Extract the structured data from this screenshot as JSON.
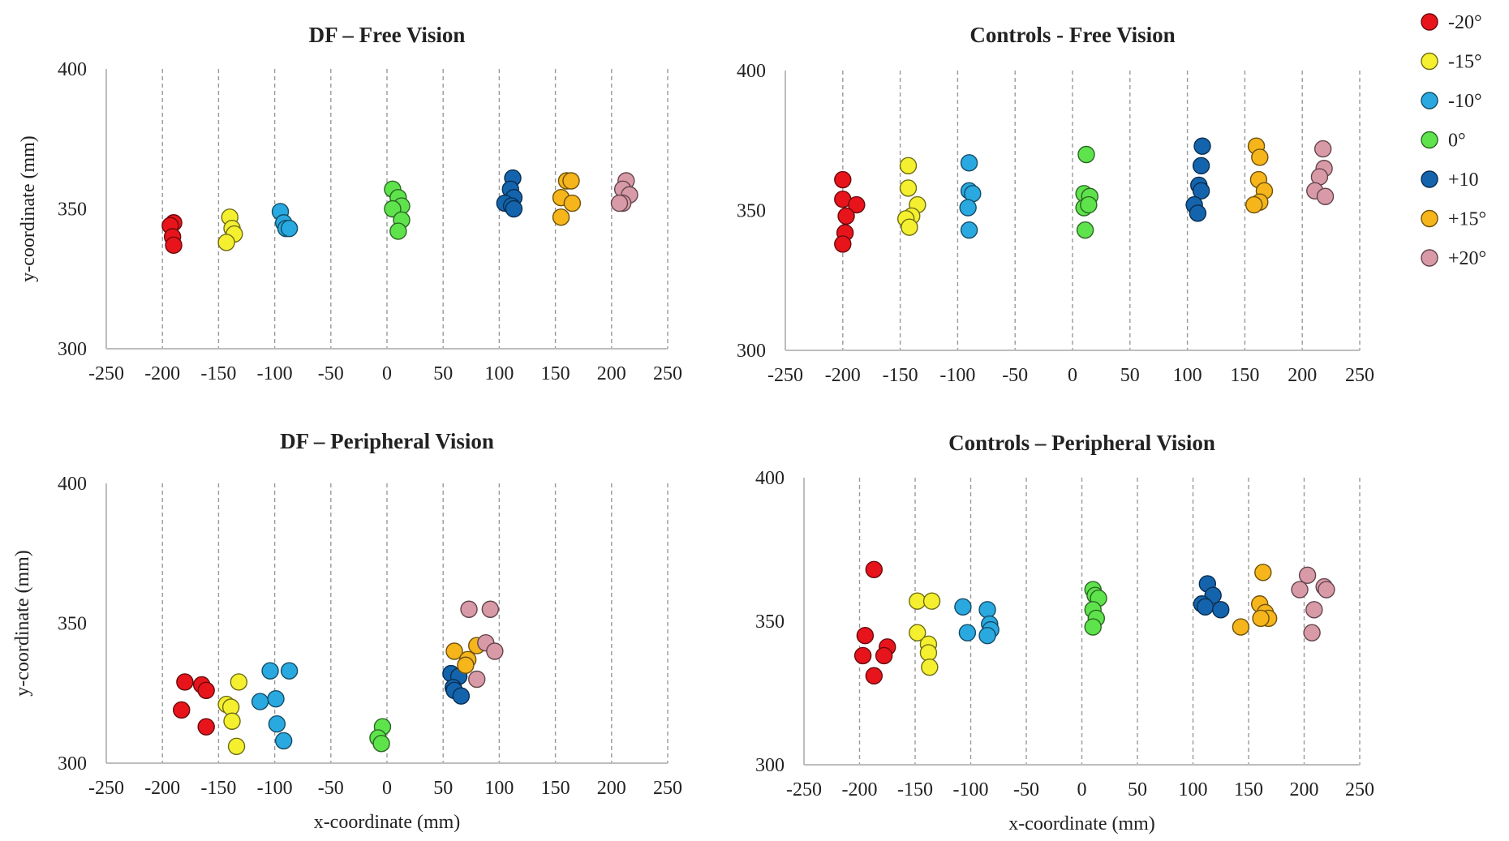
{
  "chart_data": [
    {
      "type": "scatter",
      "title": "DF – Free Vision",
      "xlabel": "",
      "ylabel": "y-coordinate  (mm)",
      "xlim": [
        -250,
        250
      ],
      "ylim": [
        300,
        400
      ],
      "xticks": [
        "-250",
        "-200",
        "-150",
        "-100",
        "-50",
        "0",
        "50",
        "100",
        "150",
        "200",
        "250"
      ],
      "yticks": [
        "300",
        "350",
        "400"
      ],
      "grid": "vertical dashed",
      "series": [
        {
          "name": "-20°",
          "points": [
            [
              -190,
              345
            ],
            [
              -193,
              344
            ],
            [
              -191,
              340
            ],
            [
              -190,
              337
            ]
          ]
        },
        {
          "name": "-15°",
          "points": [
            [
              -140,
              347
            ],
            [
              -138,
              343
            ],
            [
              -136,
              341
            ],
            [
              -143,
              338
            ]
          ]
        },
        {
          "name": "-10°",
          "points": [
            [
              -95,
              349
            ],
            [
              -92,
              345
            ],
            [
              -90,
              343
            ],
            [
              -87,
              343
            ]
          ]
        },
        {
          "name": "0°",
          "points": [
            [
              5,
              357
            ],
            [
              10,
              354
            ],
            [
              13,
              351
            ],
            [
              5,
              350
            ],
            [
              13,
              346
            ],
            [
              10,
              342
            ]
          ]
        },
        {
          "name": "+10",
          "points": [
            [
              112,
              361
            ],
            [
              110,
              357
            ],
            [
              113,
              354
            ],
            [
              105,
              352
            ],
            [
              111,
              351
            ],
            [
              113,
              350
            ]
          ]
        },
        {
          "name": "+15°",
          "points": [
            [
              160,
              360
            ],
            [
              164,
              360
            ],
            [
              155,
              354
            ],
            [
              165,
              352
            ],
            [
              155,
              347
            ]
          ]
        },
        {
          "name": "+20°",
          "points": [
            [
              213,
              360
            ],
            [
              210,
              357
            ],
            [
              216,
              355
            ],
            [
              210,
              352
            ],
            [
              207,
              352
            ]
          ]
        }
      ]
    },
    {
      "type": "scatter",
      "title": "Controls  - Free Vision",
      "xlabel": "",
      "ylabel": "",
      "xlim": [
        -250,
        250
      ],
      "ylim": [
        300,
        400
      ],
      "xticks": [
        "-250",
        "-200",
        "-150",
        "-100",
        "-50",
        "0",
        "50",
        "100",
        "150",
        "200",
        "250"
      ],
      "yticks": [
        "300",
        "350",
        "400"
      ],
      "grid": "vertical dashed",
      "series": [
        {
          "name": "-20°",
          "points": [
            [
              -200,
              361
            ],
            [
              -200,
              354
            ],
            [
              -188,
              352
            ],
            [
              -197,
              348
            ],
            [
              -198,
              342
            ],
            [
              -200,
              338
            ]
          ]
        },
        {
          "name": "-15°",
          "points": [
            [
              -143,
              366
            ],
            [
              -143,
              358
            ],
            [
              -135,
              352
            ],
            [
              -140,
              348
            ],
            [
              -145,
              347
            ],
            [
              -142,
              344
            ]
          ]
        },
        {
          "name": "-10°",
          "points": [
            [
              -90,
              367
            ],
            [
              -90,
              357
            ],
            [
              -87,
              356
            ],
            [
              -91,
              351
            ],
            [
              -90,
              343
            ]
          ]
        },
        {
          "name": "0°",
          "points": [
            [
              12,
              370
            ],
            [
              10,
              356
            ],
            [
              15,
              355
            ],
            [
              10,
              351
            ],
            [
              14,
              352
            ],
            [
              11,
              343
            ]
          ]
        },
        {
          "name": "+10",
          "points": [
            [
              113,
              373
            ],
            [
              112,
              366
            ],
            [
              110,
              359
            ],
            [
              112,
              357
            ],
            [
              106,
              352
            ],
            [
              109,
              349
            ]
          ]
        },
        {
          "name": "+15°",
          "points": [
            [
              160,
              373
            ],
            [
              163,
              369
            ],
            [
              162,
              361
            ],
            [
              167,
              357
            ],
            [
              163,
              353
            ],
            [
              158,
              352
            ]
          ]
        },
        {
          "name": "+20°",
          "points": [
            [
              218,
              372
            ],
            [
              219,
              365
            ],
            [
              215,
              362
            ],
            [
              211,
              357
            ],
            [
              220,
              355
            ]
          ]
        }
      ]
    },
    {
      "type": "scatter",
      "title": "DF – Peripheral  Vision",
      "xlabel": "x-coordinate  (mm)",
      "ylabel": "y-coordinate  (mm)",
      "xlim": [
        -250,
        250
      ],
      "ylim": [
        300,
        400
      ],
      "xticks": [
        "-250",
        "-200",
        "-150",
        "-100",
        "-50",
        "0",
        "50",
        "100",
        "150",
        "200",
        "250"
      ],
      "yticks": [
        "300",
        "350",
        "400"
      ],
      "grid": "vertical dashed",
      "series": [
        {
          "name": "-20°",
          "points": [
            [
              -180,
              329
            ],
            [
              -165,
              328
            ],
            [
              -161,
              326
            ],
            [
              -183,
              319
            ],
            [
              -161,
              313
            ]
          ]
        },
        {
          "name": "-15°",
          "points": [
            [
              -132,
              329
            ],
            [
              -143,
              321
            ],
            [
              -139,
              320
            ],
            [
              -138,
              315
            ],
            [
              -134,
              306
            ]
          ]
        },
        {
          "name": "-10°",
          "points": [
            [
              -104,
              333
            ],
            [
              -87,
              333
            ],
            [
              -99,
              323
            ],
            [
              -113,
              322
            ],
            [
              -98,
              314
            ],
            [
              -92,
              308
            ]
          ]
        },
        {
          "name": "0°",
          "points": [
            [
              -4,
              313
            ],
            [
              -8,
              309
            ],
            [
              -5,
              307
            ]
          ]
        },
        {
          "name": "+10",
          "points": [
            [
              57,
              332
            ],
            [
              64,
              331
            ],
            [
              59,
              327
            ],
            [
              60,
              326
            ],
            [
              66,
              324
            ]
          ]
        },
        {
          "name": "+15°",
          "points": [
            [
              60,
              340
            ],
            [
              80,
              342
            ],
            [
              72,
              337
            ],
            [
              70,
              335
            ]
          ]
        },
        {
          "name": "+20°",
          "points": [
            [
              73,
              355
            ],
            [
              92,
              355
            ],
            [
              88,
              343
            ],
            [
              96,
              340
            ],
            [
              80,
              330
            ]
          ]
        }
      ]
    },
    {
      "type": "scatter",
      "title": "Controls – Peripheral  Vision",
      "xlabel": "x-coordinate  (mm)",
      "ylabel": "",
      "xlim": [
        -250,
        250
      ],
      "ylim": [
        300,
        400
      ],
      "xticks": [
        "-250",
        "-200",
        "-150",
        "-100",
        "-50",
        "0",
        "50",
        "100",
        "150",
        "200",
        "250"
      ],
      "yticks": [
        "300",
        "350",
        "400"
      ],
      "grid": "vertical dashed",
      "series": [
        {
          "name": "-20°",
          "points": [
            [
              -187,
              368
            ],
            [
              -195,
              345
            ],
            [
              -175,
              341
            ],
            [
              -178,
              338
            ],
            [
              -197,
              338
            ],
            [
              -187,
              331
            ]
          ]
        },
        {
          "name": "-15°",
          "points": [
            [
              -148,
              357
            ],
            [
              -135,
              357
            ],
            [
              -148,
              346
            ],
            [
              -138,
              342
            ],
            [
              -138,
              339
            ],
            [
              -137,
              334
            ]
          ]
        },
        {
          "name": "-10°",
          "points": [
            [
              -107,
              355
            ],
            [
              -85,
              354
            ],
            [
              -83,
              349
            ],
            [
              -82,
              347
            ],
            [
              -103,
              346
            ],
            [
              -85,
              345
            ]
          ]
        },
        {
          "name": "0°",
          "points": [
            [
              10,
              361
            ],
            [
              12,
              359
            ],
            [
              15,
              358
            ],
            [
              10,
              354
            ],
            [
              13,
              351
            ],
            [
              10,
              348
            ]
          ]
        },
        {
          "name": "+10",
          "points": [
            [
              113,
              363
            ],
            [
              118,
              359
            ],
            [
              108,
              356
            ],
            [
              111,
              355
            ],
            [
              125,
              354
            ]
          ]
        },
        {
          "name": "+15°",
          "points": [
            [
              163,
              367
            ],
            [
              160,
              356
            ],
            [
              165,
              353
            ],
            [
              168,
              351
            ],
            [
              161,
              351
            ],
            [
              143,
              348
            ]
          ]
        },
        {
          "name": "+20°",
          "points": [
            [
              203,
              366
            ],
            [
              196,
              361
            ],
            [
              218,
              362
            ],
            [
              220,
              361
            ],
            [
              209,
              354
            ],
            [
              207,
              346
            ]
          ]
        }
      ]
    }
  ],
  "legend": [
    {
      "label": "-20°",
      "color": "#e8141b"
    },
    {
      "label": "-15°",
      "color": "#f5f02f"
    },
    {
      "label": "-10°",
      "color": "#2aa9e0"
    },
    {
      "label": "0°",
      "color": "#5ee34c"
    },
    {
      "label": "+10",
      "color": "#1464ad"
    },
    {
      "label": "+15°",
      "color": "#f5b51b"
    },
    {
      "label": "+20°",
      "color": "#d99aa8"
    }
  ]
}
